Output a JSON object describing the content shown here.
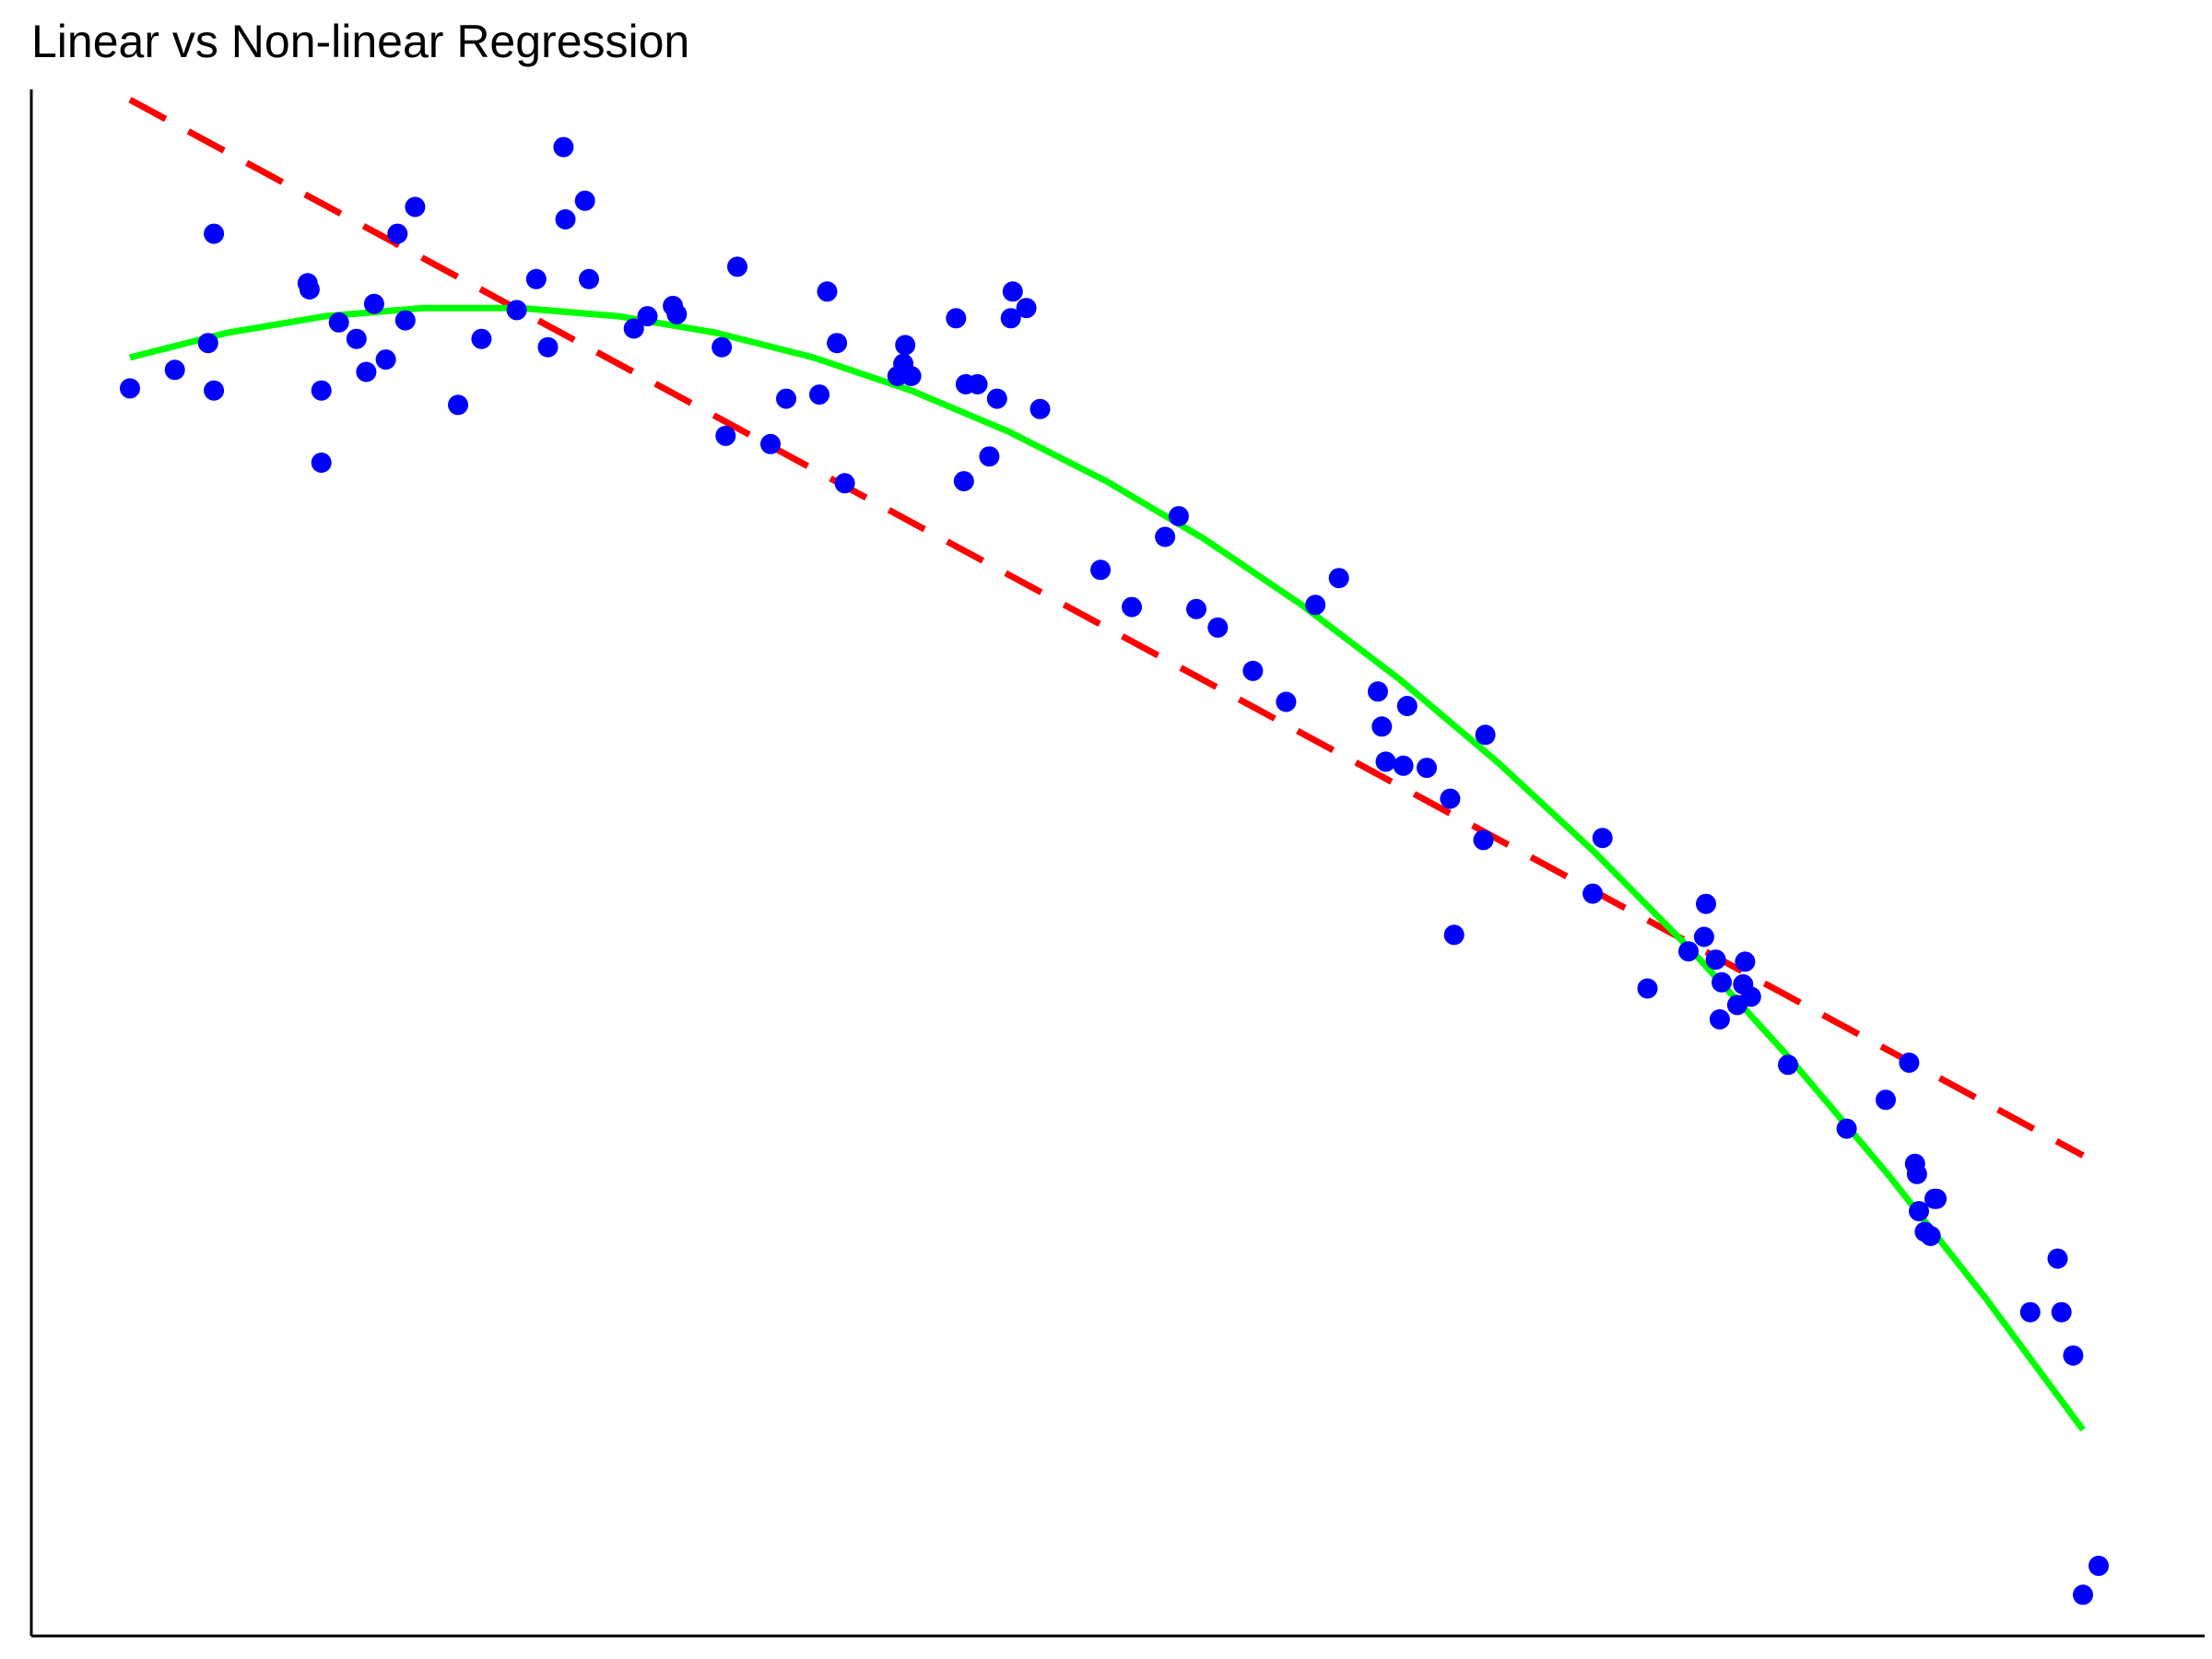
{
  "chart_data": {
    "type": "scatter",
    "title": "Linear vs Non-linear Regression",
    "xlabel": "",
    "ylabel": "",
    "xlim": [
      0,
      10
    ],
    "ylim": [
      -60,
      15
    ],
    "grid": false,
    "legend": "none",
    "axes_visible": [
      "left",
      "bottom"
    ],
    "ticks_visible": false,
    "colors": {
      "points": "#0000ff",
      "linear_fit": "#ff0000",
      "nonlinear_fit": "#00ff00",
      "axes": "#000000"
    },
    "points": [
      [
        0.0,
        0.5
      ],
      [
        0.23,
        1.4
      ],
      [
        0.4,
        2.7
      ],
      [
        0.43,
        0.4
      ],
      [
        0.43,
        8.0
      ],
      [
        0.91,
        5.6
      ],
      [
        0.92,
        5.3
      ],
      [
        0.98,
        0.4
      ],
      [
        0.98,
        -3.1
      ],
      [
        1.07,
        3.7
      ],
      [
        1.16,
        2.9
      ],
      [
        1.21,
        1.3
      ],
      [
        1.25,
        4.6
      ],
      [
        1.31,
        1.9
      ],
      [
        1.37,
        8.0
      ],
      [
        1.41,
        3.8
      ],
      [
        1.46,
        9.3
      ],
      [
        1.68,
        -0.3
      ],
      [
        1.8,
        2.9
      ],
      [
        1.98,
        4.3
      ],
      [
        2.08,
        5.8
      ],
      [
        2.14,
        2.5
      ],
      [
        2.22,
        12.2
      ],
      [
        2.23,
        8.7
      ],
      [
        2.33,
        9.6
      ],
      [
        2.35,
        5.8
      ],
      [
        2.58,
        3.4
      ],
      [
        2.65,
        4.0
      ],
      [
        2.78,
        4.5
      ],
      [
        2.8,
        4.1
      ],
      [
        3.03,
        2.5
      ],
      [
        3.05,
        -1.8
      ],
      [
        3.11,
        6.4
      ],
      [
        3.28,
        -2.2
      ],
      [
        3.36,
        0.0
      ],
      [
        3.53,
        0.2
      ],
      [
        3.57,
        5.2
      ],
      [
        3.62,
        2.7
      ],
      [
        3.66,
        -4.1
      ],
      [
        3.93,
        1.1
      ],
      [
        3.96,
        1.7
      ],
      [
        3.97,
        2.6
      ],
      [
        4.0,
        1.1
      ],
      [
        4.23,
        3.9
      ],
      [
        4.27,
        -4.0
      ],
      [
        4.28,
        0.7
      ],
      [
        4.34,
        0.7
      ],
      [
        4.4,
        -2.8
      ],
      [
        4.44,
        0.0
      ],
      [
        4.51,
        3.9
      ],
      [
        4.52,
        5.2
      ],
      [
        4.59,
        4.4
      ],
      [
        4.66,
        -0.5
      ],
      [
        4.97,
        -8.3
      ],
      [
        5.13,
        -10.1
      ],
      [
        5.3,
        -6.7
      ],
      [
        5.37,
        -5.7
      ],
      [
        5.46,
        -10.2
      ],
      [
        5.57,
        -11.1
      ],
      [
        5.75,
        -13.2
      ],
      [
        5.92,
        -14.7
      ],
      [
        6.07,
        -10.0
      ],
      [
        6.19,
        -8.7
      ],
      [
        6.39,
        -14.2
      ],
      [
        6.41,
        -15.9
      ],
      [
        6.43,
        -17.6
      ],
      [
        6.52,
        -17.8
      ],
      [
        6.54,
        -14.9
      ],
      [
        6.64,
        -17.9
      ],
      [
        6.76,
        -19.4
      ],
      [
        6.78,
        -26.0
      ],
      [
        6.93,
        -21.4
      ],
      [
        6.94,
        -16.3
      ],
      [
        7.49,
        -24.0
      ],
      [
        7.54,
        -21.3
      ],
      [
        7.77,
        -28.6
      ],
      [
        7.98,
        -26.8
      ],
      [
        8.06,
        -26.1
      ],
      [
        8.07,
        -24.5
      ],
      [
        8.12,
        -27.2
      ],
      [
        8.14,
        -30.1
      ],
      [
        8.15,
        -28.3
      ],
      [
        8.23,
        -29.4
      ],
      [
        8.27,
        -27.3
      ],
      [
        8.26,
        -28.4
      ],
      [
        8.3,
        -29.0
      ],
      [
        8.49,
        -32.3
      ],
      [
        8.79,
        -35.4
      ],
      [
        8.99,
        -34.0
      ],
      [
        9.11,
        -32.2
      ],
      [
        9.14,
        -37.1
      ],
      [
        9.15,
        -37.6
      ],
      [
        9.16,
        -39.4
      ],
      [
        9.19,
        -40.4
      ],
      [
        9.24,
        -38.8
      ],
      [
        9.22,
        -40.6
      ],
      [
        9.25,
        -38.8
      ],
      [
        9.73,
        -44.3
      ],
      [
        9.87,
        -41.7
      ],
      [
        9.89,
        -44.3
      ],
      [
        9.95,
        -46.4
      ],
      [
        10.0,
        -58.0
      ],
      [
        10.08,
        -56.6
      ]
    ],
    "series": [
      {
        "kind": "linear_fit",
        "style": "dashed",
        "x": [
          0,
          10
        ],
        "y": [
          14.5,
          -36.7
        ]
      },
      {
        "kind": "nonlinear_fit",
        "style": "solid",
        "x": [
          0,
          0.5,
          1,
          1.5,
          2,
          2.5,
          3,
          3.5,
          4,
          4.5,
          5,
          5.5,
          6,
          6.5,
          7,
          7.5,
          8,
          8.5,
          9,
          9.5,
          10
        ],
        "y": [
          2.0,
          3.2,
          4.0,
          4.4,
          4.4,
          4.0,
          3.2,
          2.0,
          0.4,
          -1.6,
          -4.0,
          -6.8,
          -10.0,
          -13.6,
          -17.6,
          -22.0,
          -26.8,
          -32.0,
          -37.6,
          -43.6,
          -50.0
        ]
      }
    ]
  }
}
